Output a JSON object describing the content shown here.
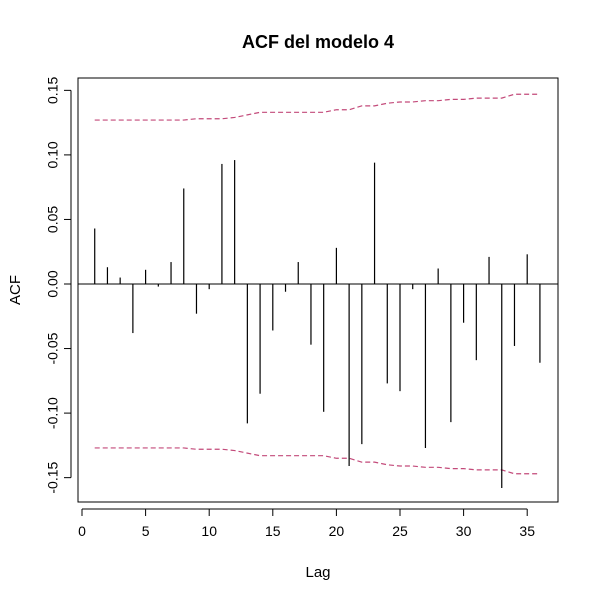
{
  "chart_data": {
    "type": "bar",
    "title": "ACF del modelo 4",
    "xlabel": "Lag",
    "ylabel": "ACF",
    "xlim": [
      0,
      36
    ],
    "ylim": [
      -0.16,
      0.16
    ],
    "x_ticks": [
      0,
      5,
      10,
      15,
      20,
      25,
      30,
      35
    ],
    "x_tick_labels": [
      "0",
      "5",
      "10",
      "15",
      "20",
      "25",
      "30",
      "35"
    ],
    "y_ticks": [
      -0.15,
      -0.1,
      -0.05,
      0.0,
      0.05,
      0.1,
      0.15
    ],
    "y_tick_labels": [
      "-0.15",
      "-0.10",
      "-0.05",
      "0.00",
      "0.05",
      "0.10",
      "0.15"
    ],
    "lags": [
      1,
      2,
      3,
      4,
      5,
      6,
      7,
      8,
      9,
      10,
      11,
      12,
      13,
      14,
      15,
      16,
      17,
      18,
      19,
      20,
      21,
      22,
      23,
      24,
      25,
      26,
      27,
      28,
      29,
      30,
      31,
      32,
      33,
      34,
      35,
      36
    ],
    "values": [
      0.043,
      0.013,
      0.005,
      -0.038,
      0.011,
      -0.002,
      0.017,
      0.074,
      -0.023,
      -0.004,
      0.093,
      0.096,
      -0.108,
      -0.085,
      -0.036,
      -0.006,
      0.017,
      -0.047,
      -0.099,
      0.028,
      -0.141,
      -0.124,
      0.094,
      -0.077,
      -0.083,
      -0.004,
      -0.127,
      0.012,
      -0.107,
      -0.03,
      -0.059,
      0.021,
      -0.158,
      -0.048,
      0.023,
      -0.061
    ],
    "confidence_bounds": {
      "upper": [
        0.127,
        0.127,
        0.127,
        0.127,
        0.127,
        0.127,
        0.127,
        0.127,
        0.128,
        0.128,
        0.128,
        0.129,
        0.131,
        0.133,
        0.133,
        0.133,
        0.133,
        0.133,
        0.133,
        0.135,
        0.135,
        0.138,
        0.138,
        0.14,
        0.141,
        0.141,
        0.142,
        0.142,
        0.143,
        0.143,
        0.144,
        0.144,
        0.144,
        0.147,
        0.147,
        0.147
      ],
      "lower": [
        -0.127,
        -0.127,
        -0.127,
        -0.127,
        -0.127,
        -0.127,
        -0.127,
        -0.127,
        -0.128,
        -0.128,
        -0.128,
        -0.129,
        -0.131,
        -0.133,
        -0.133,
        -0.133,
        -0.133,
        -0.133,
        -0.133,
        -0.135,
        -0.135,
        -0.138,
        -0.138,
        -0.14,
        -0.141,
        -0.141,
        -0.142,
        -0.142,
        -0.143,
        -0.143,
        -0.144,
        -0.144,
        -0.144,
        -0.147,
        -0.147,
        -0.147
      ]
    },
    "colors": {
      "bars": "#000000",
      "zero_line": "#000000",
      "bounds": "#C34A7A",
      "frame": "#000000"
    }
  }
}
